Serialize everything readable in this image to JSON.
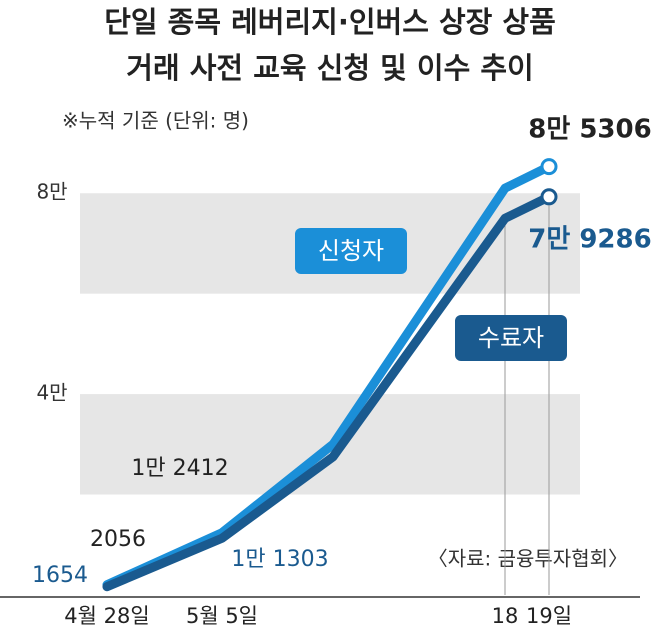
{
  "chart_data": {
    "type": "line",
    "title": [
      "단일 종목 레버리지·인버스 상장 상품",
      "거래 사전 교육 신청 및 이수 추이"
    ],
    "subtitle": "※누적 기준 (단위: 명)",
    "source": "〈자료: 금융투자협회〉",
    "categories": [
      "4월 28일",
      "5월 5일",
      null,
      "18",
      "19일"
    ],
    "series": [
      {
        "name": "신청자",
        "color": "#1b8fd8",
        "values": [
          2056,
          12412,
          30000,
          81000,
          85306
        ],
        "value_labels": [
          "2056",
          "1만 2412",
          null,
          null,
          "8만 5306"
        ]
      },
      {
        "name": "수료자",
        "color": "#1a5a8f",
        "values": [
          1654,
          11303,
          27500,
          75000,
          79286
        ],
        "value_labels": [
          "1654",
          "1만 1303",
          null,
          null,
          "7만 9286"
        ]
      }
    ],
    "ylim": [
      0,
      90000
    ],
    "yticks": [
      {
        "value": 40000,
        "label": "4만"
      },
      {
        "value": 80000,
        "label": "8만"
      }
    ],
    "grid": true
  }
}
